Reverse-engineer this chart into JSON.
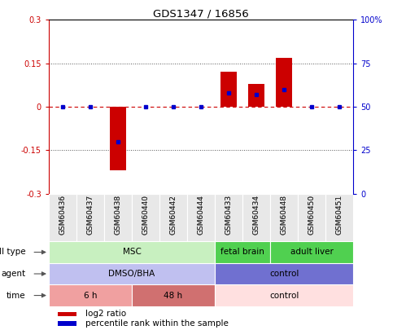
{
  "title": "GDS1347 / 16856",
  "samples": [
    "GSM60436",
    "GSM60437",
    "GSM60438",
    "GSM60440",
    "GSM60442",
    "GSM60444",
    "GSM60433",
    "GSM60434",
    "GSM60448",
    "GSM60450",
    "GSM60451"
  ],
  "log2_ratio": [
    0.0,
    0.0,
    -0.22,
    0.0,
    0.0,
    0.0,
    0.12,
    0.08,
    0.17,
    0.0,
    0.0
  ],
  "percentile_rank": [
    50,
    50,
    30,
    50,
    50,
    50,
    58,
    57,
    60,
    50,
    50
  ],
  "ylim": [
    -0.3,
    0.3
  ],
  "yticks_left": [
    -0.3,
    -0.15,
    0,
    0.15,
    0.3
  ],
  "cell_type_groups": [
    {
      "label": "MSC",
      "start": 0,
      "end": 6,
      "color": "#c8f0c0"
    },
    {
      "label": "fetal brain",
      "start": 6,
      "end": 8,
      "color": "#50d050"
    },
    {
      "label": "adult liver",
      "start": 8,
      "end": 11,
      "color": "#50d050"
    }
  ],
  "agent_groups": [
    {
      "label": "DMSO/BHA",
      "start": 0,
      "end": 6,
      "color": "#c0c0f0"
    },
    {
      "label": "control",
      "start": 6,
      "end": 11,
      "color": "#7070d0"
    }
  ],
  "time_groups": [
    {
      "label": "6 h",
      "start": 0,
      "end": 3,
      "color": "#f0a0a0"
    },
    {
      "label": "48 h",
      "start": 3,
      "end": 6,
      "color": "#d07070"
    },
    {
      "label": "control",
      "start": 6,
      "end": 11,
      "color": "#ffe0e0"
    }
  ],
  "bar_color": "#cc0000",
  "percentile_color": "#0000cc",
  "zero_line_color": "#cc0000",
  "dotted_line_color": "#555555",
  "right_axis_color": "#0000cc",
  "left_axis_color": "#cc0000",
  "legend_bar_label": "log2 ratio",
  "legend_pct_label": "percentile rank within the sample",
  "border_color": "#888888"
}
